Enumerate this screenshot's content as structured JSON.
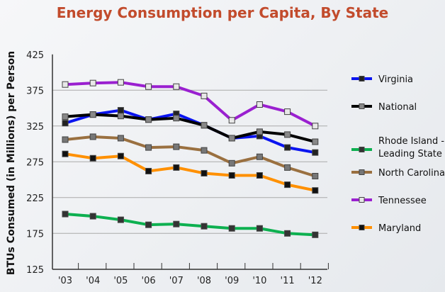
{
  "chart_data": {
    "type": "line",
    "title": "Energy Consumption per Capita, By State",
    "xlabel": "",
    "ylabel": "BTUs Consumed (in Millions) per Person",
    "categories": [
      "'03",
      "'04",
      "'05",
      "'06",
      "'07",
      "'08",
      "'09",
      "'10",
      "'11",
      "'12"
    ],
    "ylim": [
      125,
      425
    ],
    "yticks": [
      125,
      175,
      225,
      275,
      325,
      375,
      425
    ],
    "grid": true,
    "legend_position": "right",
    "series": [
      {
        "name": "Virginia",
        "color": "#0a14f0",
        "marker": "#222222",
        "values": [
          329,
          341,
          347,
          334,
          342,
          326,
          308,
          311,
          295,
          288
        ]
      },
      {
        "name": "National",
        "color": "#000000",
        "marker": "#888888",
        "values": [
          338,
          341,
          339,
          334,
          336,
          326,
          308,
          317,
          313,
          303
        ]
      },
      {
        "name": "Rhode Island - Leading State",
        "color": "#0db050",
        "marker": "#333333",
        "values": [
          202,
          199,
          194,
          187,
          188,
          185,
          182,
          182,
          175,
          173
        ]
      },
      {
        "name": "North Carolina",
        "color": "#9a7040",
        "marker": "#777777",
        "values": [
          306,
          310,
          308,
          295,
          296,
          291,
          273,
          282,
          267,
          255
        ]
      },
      {
        "name": "Tennessee",
        "color": "#9a20d0",
        "marker": "#e8e8e8",
        "values": [
          383,
          385,
          386,
          380,
          380,
          367,
          333,
          355,
          345,
          325
        ]
      },
      {
        "name": "Maryland",
        "color": "#ff9000",
        "marker": "#111111",
        "values": [
          286,
          280,
          283,
          262,
          267,
          259,
          256,
          256,
          243,
          235
        ]
      }
    ]
  }
}
